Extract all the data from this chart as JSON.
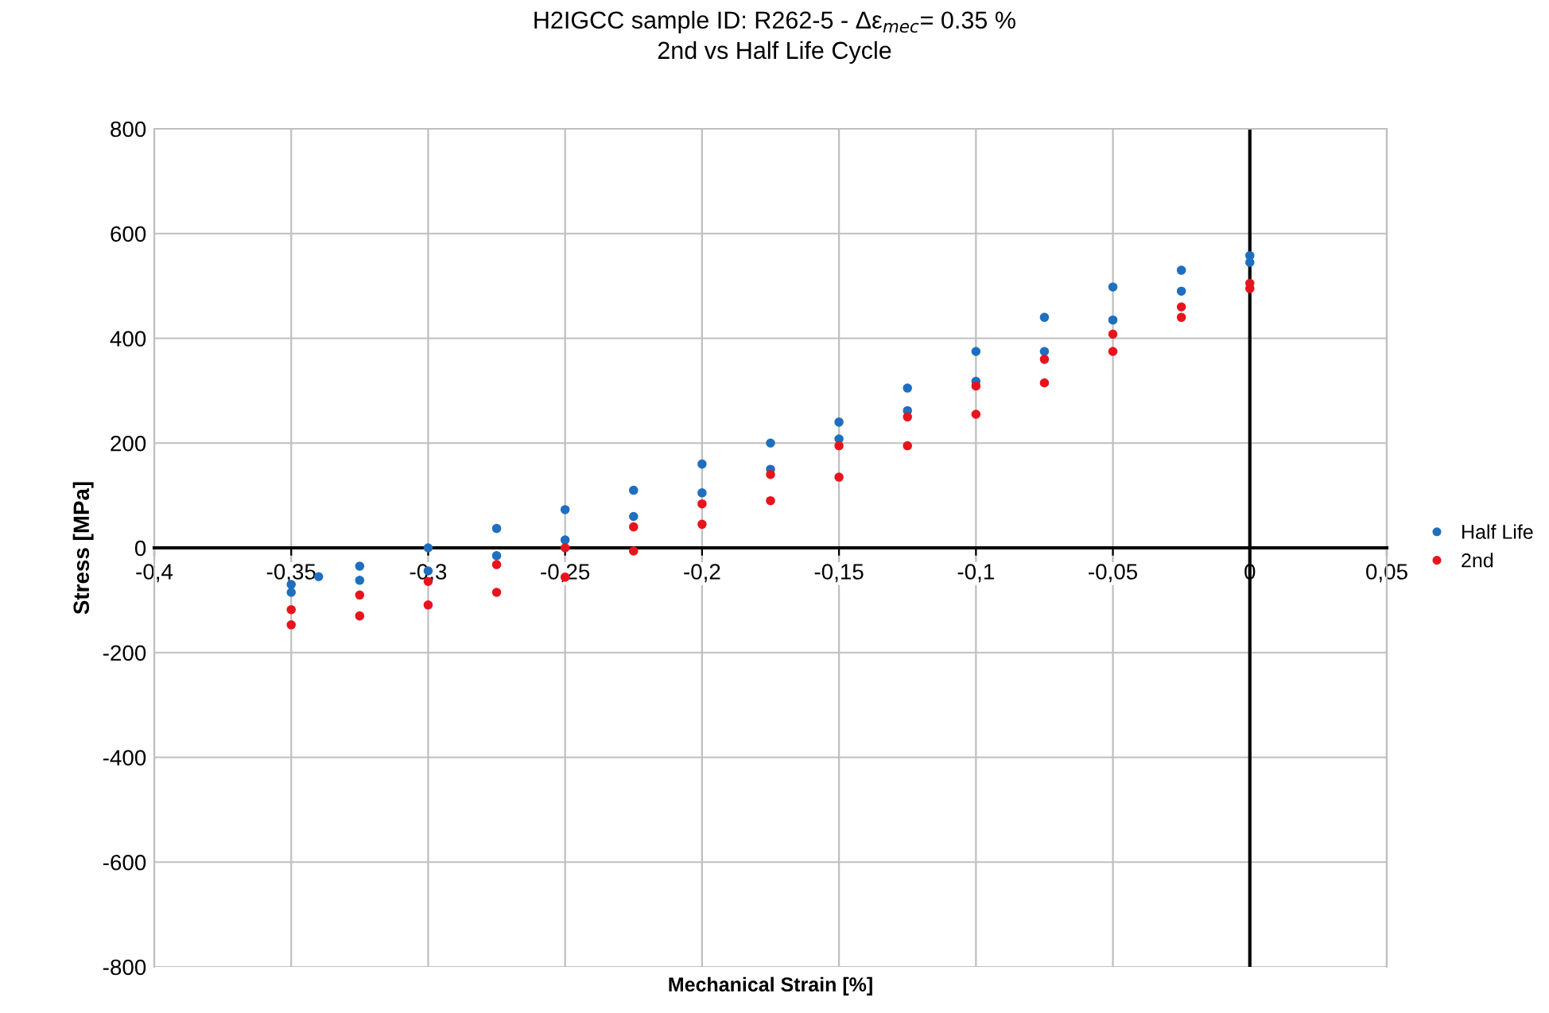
{
  "chart_data": {
    "type": "scatter",
    "title": "H2IGCC sample ID: R262-5 - Δε$_{mec}$= 0.35 %",
    "subtitle": "2nd vs Half Life Cycle",
    "xlabel": "Mechanical Strain [%]",
    "ylabel": "Stress [MPa]",
    "series": [
      {
        "name": "Half Life",
        "color": "#1f6fbf",
        "x": [
          -0.35,
          -0.34,
          -0.325,
          -0.3,
          -0.275,
          -0.25,
          -0.225,
          -0.2,
          -0.175,
          -0.15,
          -0.125,
          -0.1,
          -0.075,
          -0.05,
          -0.025,
          0,
          0,
          -0.025,
          -0.05,
          -0.075,
          -0.1,
          -0.125,
          -0.15,
          -0.175,
          -0.2,
          -0.225,
          -0.25,
          -0.275,
          -0.3,
          -0.325,
          -0.35
        ],
        "values": [
          -70,
          -55,
          -35,
          0,
          37,
          73,
          110,
          160,
          200,
          240,
          305,
          375,
          440,
          498,
          530,
          558,
          545,
          490,
          435,
          375,
          318,
          262,
          208,
          150,
          105,
          60,
          15,
          -15,
          -44,
          -62,
          -85
        ]
      },
      {
        "name": "2nd",
        "color": "#e8141c",
        "x": [
          -0.35,
          -0.325,
          -0.3,
          -0.275,
          -0.25,
          -0.225,
          -0.2,
          -0.175,
          -0.15,
          -0.125,
          -0.1,
          -0.075,
          -0.05,
          -0.025,
          0,
          0,
          -0.025,
          -0.05,
          -0.075,
          -0.1,
          -0.125,
          -0.15,
          -0.175,
          -0.2,
          -0.225,
          -0.25,
          -0.275,
          -0.3,
          -0.325,
          -0.35
        ],
        "values": [
          -118,
          -90,
          -64,
          -32,
          0,
          40,
          84,
          140,
          195,
          250,
          309,
          360,
          408,
          460,
          505,
          495,
          440,
          375,
          315,
          255,
          195,
          135,
          90,
          45,
          -6,
          -56,
          -85,
          -109,
          -130,
          -147
        ]
      }
    ],
    "xlim": [
      -0.4,
      0.05
    ],
    "xticks": [
      {
        "value": -0.4,
        "label": "-0,4"
      },
      {
        "value": -0.35,
        "label": "-0,35"
      },
      {
        "value": -0.3,
        "label": "-0,3"
      },
      {
        "value": -0.25,
        "label": "-0,25"
      },
      {
        "value": -0.2,
        "label": "-0,2"
      },
      {
        "value": -0.15,
        "label": "-0,15"
      },
      {
        "value": -0.1,
        "label": "-0,1"
      },
      {
        "value": -0.05,
        "label": "-0,05"
      },
      0,
      {
        "value": 0.05,
        "label": "0,05"
      }
    ],
    "ylim": [
      -800,
      800
    ],
    "yticks": [
      -800,
      -600,
      -400,
      -200,
      0,
      200,
      400,
      600,
      800
    ],
    "ref_lines": [
      {
        "axis": "x",
        "value": 0,
        "color": "#000000"
      }
    ],
    "grid": true,
    "legend": "right",
    "marker": "circle"
  }
}
